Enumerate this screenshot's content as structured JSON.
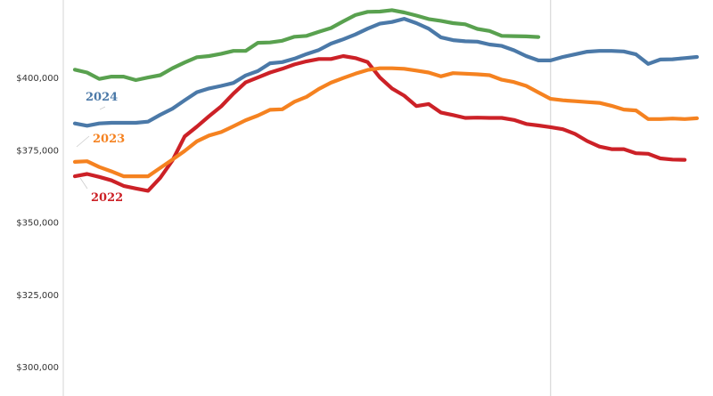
{
  "chart_data": {
    "type": "line",
    "title": "",
    "xlabel": "",
    "ylabel": "",
    "ylim": [
      290000,
      427000
    ],
    "yticks": [
      {
        "value": 300000,
        "label": "$300,000"
      },
      {
        "value": 325000,
        "label": "$325,000"
      },
      {
        "value": 350000,
        "label": "$350,000"
      },
      {
        "value": 375000,
        "label": "$375,000"
      },
      {
        "value": 400000,
        "label": "$400,000"
      }
    ],
    "grid": false,
    "reference_line_week": 40,
    "x": [
      1,
      2,
      3,
      4,
      5,
      6,
      7,
      8,
      9,
      10,
      11,
      12,
      13,
      14,
      15,
      16,
      17,
      18,
      19,
      20,
      21,
      22,
      23,
      24,
      25,
      26,
      27,
      28,
      29,
      30,
      31,
      32,
      33,
      34,
      35,
      36,
      37,
      38,
      39,
      40,
      41,
      42,
      43,
      44,
      45,
      46,
      47,
      48,
      49,
      50,
      51,
      52
    ],
    "series": [
      {
        "name": "2022",
        "color": "#cc2127",
        "values": [
          366000,
          366800,
          365800,
          364600,
          362700,
          361800,
          361000,
          365500,
          371500,
          379800,
          383200,
          386800,
          390200,
          394600,
          398500,
          400200,
          401900,
          403200,
          404700,
          405800,
          406600,
          406600,
          407600,
          406900,
          405500,
          400200,
          396400,
          393900,
          390300,
          391000,
          388100,
          387200,
          386200,
          386300,
          386200,
          386200,
          385500,
          384100,
          383600,
          383000,
          382300,
          380700,
          378200,
          376300,
          375400,
          375400,
          374000,
          373800,
          372200,
          371800,
          371700,
          null
        ]
      },
      {
        "name": "2023",
        "color": "#f58220",
        "values": [
          371000,
          371200,
          369200,
          367700,
          366000,
          366000,
          366000,
          368900,
          371800,
          374800,
          378100,
          380100,
          381300,
          383300,
          385400,
          387000,
          389000,
          389200,
          391800,
          393500,
          396200,
          398400,
          400000,
          401500,
          402800,
          403400,
          403400,
          403200,
          402600,
          401900,
          400600,
          401700,
          401500,
          401300,
          401000,
          399400,
          398600,
          397300,
          395000,
          392800,
          392300,
          392000,
          391700,
          391400,
          390400,
          389100,
          388800,
          385800,
          385800,
          386000,
          385800,
          386100
        ]
      },
      {
        "name": "2024",
        "color": "#4b79a8",
        "values": [
          384300,
          383500,
          384300,
          384500,
          384500,
          384500,
          384900,
          387300,
          389400,
          392300,
          395100,
          396400,
          397300,
          398300,
          400900,
          402400,
          405100,
          405500,
          406700,
          408300,
          409700,
          411900,
          413400,
          415100,
          417100,
          418800,
          419400,
          420500,
          419000,
          417100,
          414100,
          413100,
          412700,
          412600,
          411600,
          411100,
          409600,
          407600,
          406100,
          406100,
          407300,
          408200,
          409100,
          409400,
          409400,
          409200,
          408200,
          404900,
          406400,
          406500,
          406900,
          407300
        ]
      },
      {
        "name": "",
        "color": "#59a14f",
        "values": [
          402900,
          401900,
          399700,
          400500,
          400500,
          399300,
          400200,
          401000,
          403400,
          405400,
          407200,
          407600,
          408400,
          409400,
          409400,
          412200,
          412300,
          412900,
          414300,
          414600,
          416000,
          417300,
          419600,
          421800,
          422900,
          423000,
          423500,
          422700,
          421600,
          420400,
          419800,
          419000,
          418600,
          417000,
          416300,
          414600,
          414500,
          414400,
          414200,
          null,
          null,
          null,
          null,
          null,
          null,
          null,
          null,
          null,
          null,
          null,
          null,
          null
        ]
      }
    ],
    "annotations": [
      {
        "text": "2024",
        "series": "2024"
      },
      {
        "text": "2023",
        "series": "2023"
      },
      {
        "text": "2022",
        "series": "2022"
      }
    ]
  }
}
